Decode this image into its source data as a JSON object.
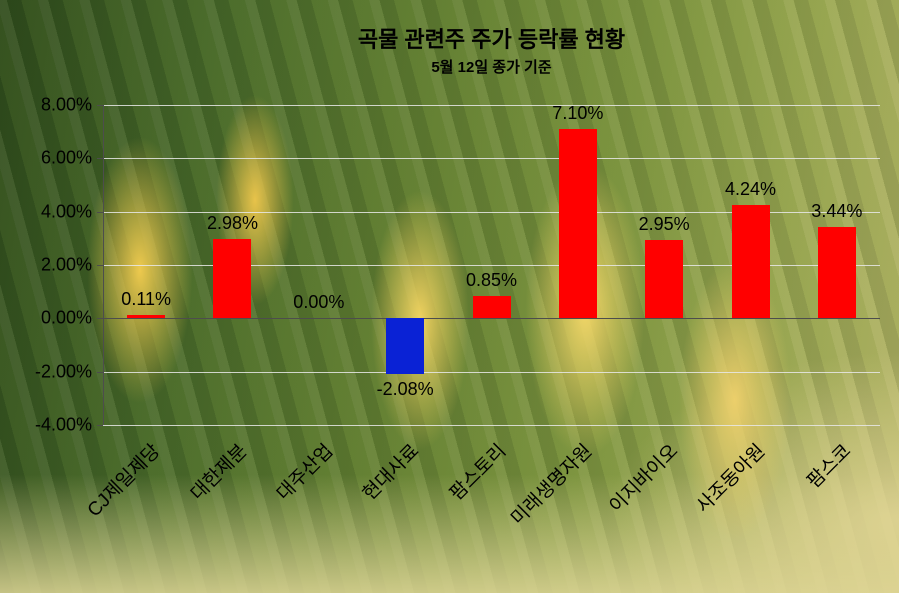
{
  "chart_data": {
    "type": "bar",
    "title": "곡물 관련주 주가 등락률 현황",
    "subtitle": "5월 12일 종가 기준",
    "categories": [
      "CJ제일제당",
      "대한제분",
      "대주산업",
      "현대사료",
      "팜스토리",
      "미래생명자원",
      "이지바이오",
      "사조동아원",
      "팜스코"
    ],
    "values": [
      0.11,
      2.98,
      0.0,
      -2.08,
      0.85,
      7.1,
      2.95,
      4.24,
      3.44
    ],
    "labels": [
      "0.11%",
      "2.98%",
      "0.00%",
      "-2.08%",
      "0.85%",
      "7.10%",
      "2.95%",
      "4.24%",
      "3.44%"
    ],
    "xlabel": "",
    "ylabel": "",
    "ylim": [
      -4,
      8
    ],
    "ytick_step": 2,
    "ytick_labels": [
      "8.00%",
      "6.00%",
      "4.00%",
      "2.00%",
      "0.00%",
      "-2.00%",
      "-4.00%"
    ],
    "grid": true,
    "legend": "none",
    "positive_color": "#ff0000",
    "negative_color": "#0a22d5"
  }
}
